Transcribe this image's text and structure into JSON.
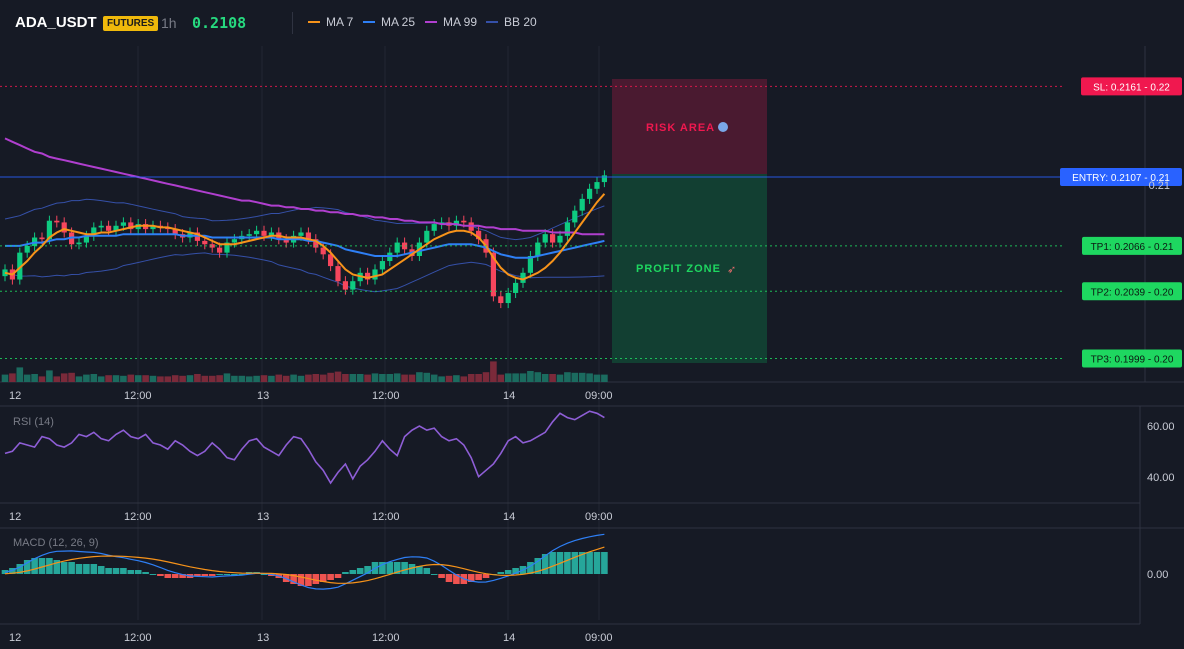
{
  "header": {
    "symbol": "ADA_USDT",
    "badge": "FUTURES",
    "timeframe": "1h",
    "price": "0.2108"
  },
  "legend": [
    {
      "label": "MA 7",
      "color": "#f7931a"
    },
    {
      "label": "MA 25",
      "color": "#2e7ff5"
    },
    {
      "label": "MA 99",
      "color": "#b03fcf"
    },
    {
      "label": "BB 20",
      "color": "#3550a8"
    }
  ],
  "levels": {
    "sl": {
      "label": "SL: 0.2161 - 0.22",
      "value": 0.2161,
      "color": "#f0184f"
    },
    "entry": {
      "label": "ENTRY: 0.2107 - 0.21",
      "value": 0.2107,
      "color": "#2962ff"
    },
    "tp1": {
      "label": "TP1: 0.2066 - 0.21",
      "value": 0.2066,
      "color": "#1ed760"
    },
    "tp2": {
      "label": "TP2: 0.2039 - 0.20",
      "value": 0.2039,
      "color": "#1ed760"
    },
    "tp3": {
      "label": "TP3: 0.1999 - 0.20",
      "value": 0.1999,
      "color": "#1ed760"
    }
  },
  "zones": {
    "risk": "RISK AREA",
    "profit": "PROFIT ZONE"
  },
  "price_axis": {
    "tick": "0.21"
  },
  "time_axis": [
    "12",
    "12:00",
    "13",
    "12:00",
    "14",
    "09:00"
  ],
  "rsi": {
    "label": "RSI (14)",
    "ticks": [
      "60.00",
      "40.00"
    ]
  },
  "macd": {
    "label": "MACD (12, 26, 9)",
    "ticks": [
      "0.00"
    ]
  },
  "chart_data": {
    "type": "line",
    "ylim": [
      0.1985,
      0.2185
    ],
    "close": [
      0.2052,
      0.2046,
      0.2062,
      0.2066,
      0.2071,
      0.207,
      0.2081,
      0.208,
      0.2074,
      0.2067,
      0.2068,
      0.2072,
      0.2077,
      0.2078,
      0.2075,
      0.2078,
      0.208,
      0.2076,
      0.2079,
      0.2076,
      0.2078,
      0.2077,
      0.2076,
      0.2073,
      0.2071,
      0.2074,
      0.2069,
      0.2067,
      0.2065,
      0.2062,
      0.2068,
      0.207,
      0.2072,
      0.2073,
      0.2075,
      0.2072,
      0.2074,
      0.207,
      0.2068,
      0.2072,
      0.2074,
      0.207,
      0.2065,
      0.2061,
      0.2054,
      0.2045,
      0.204,
      0.2045,
      0.205,
      0.2046,
      0.2052,
      0.2057,
      0.2062,
      0.2068,
      0.2064,
      0.206,
      0.2068,
      0.2075,
      0.2079,
      0.208,
      0.2078,
      0.2081,
      0.208,
      0.2075,
      0.207,
      0.2062,
      0.2036,
      0.2032,
      0.2038,
      0.2044,
      0.205,
      0.206,
      0.2068,
      0.2073,
      0.2068,
      0.2072,
      0.208,
      0.2087,
      0.2094,
      0.21,
      0.2104,
      0.2108
    ],
    "ma7": [
      0.205,
      0.2049,
      0.2053,
      0.2057,
      0.2062,
      0.2066,
      0.2071,
      0.2074,
      0.2076,
      0.2075,
      0.2074,
      0.2073,
      0.2073,
      0.2074,
      0.2074,
      0.2075,
      0.2076,
      0.2077,
      0.2078,
      0.2078,
      0.2078,
      0.2077,
      0.2077,
      0.2076,
      0.2075,
      0.2074,
      0.2073,
      0.2071,
      0.2069,
      0.2067,
      0.2067,
      0.2067,
      0.2068,
      0.2069,
      0.207,
      0.2071,
      0.2072,
      0.2072,
      0.2071,
      0.2071,
      0.2071,
      0.207,
      0.2069,
      0.2066,
      0.2062,
      0.2057,
      0.2052,
      0.2049,
      0.2048,
      0.2047,
      0.2048,
      0.2049,
      0.2052,
      0.2055,
      0.2058,
      0.2061,
      0.2064,
      0.2067,
      0.207,
      0.2072,
      0.2074,
      0.2075,
      0.2075,
      0.2074,
      0.2071,
      0.2066,
      0.2059,
      0.2053,
      0.2049,
      0.2047,
      0.2046,
      0.2048,
      0.205,
      0.2053,
      0.2057,
      0.2062,
      0.2068,
      0.2074,
      0.208,
      0.2086,
      0.2092,
      0.2097
    ],
    "ma25": [
      0.2066,
      0.2066,
      0.2066,
      0.2067,
      0.2068,
      0.2068,
      0.2069,
      0.207,
      0.207,
      0.2071,
      0.2071,
      0.2072,
      0.2072,
      0.2072,
      0.2072,
      0.2072,
      0.2073,
      0.2073,
      0.2073,
      0.2073,
      0.2073,
      0.2073,
      0.2073,
      0.2073,
      0.2072,
      0.2072,
      0.2072,
      0.2072,
      0.2071,
      0.2071,
      0.2071,
      0.2071,
      0.2071,
      0.2071,
      0.2071,
      0.2071,
      0.2071,
      0.207,
      0.207,
      0.207,
      0.207,
      0.2069,
      0.2069,
      0.2068,
      0.2067,
      0.2066,
      0.2064,
      0.2063,
      0.2062,
      0.2061,
      0.206,
      0.206,
      0.206,
      0.206,
      0.2061,
      0.2062,
      0.2063,
      0.2064,
      0.2065,
      0.2066,
      0.2067,
      0.2067,
      0.2067,
      0.2067,
      0.2066,
      0.2065,
      0.2063,
      0.2061,
      0.206,
      0.2059,
      0.2059,
      0.2059,
      0.206,
      0.2061,
      0.2062,
      0.2063,
      0.2064,
      0.2065,
      0.2066,
      0.2067,
      0.2068,
      0.2069
    ],
    "ma99": [
      0.213,
      0.2128,
      0.2126,
      0.2124,
      0.2122,
      0.2121,
      0.2119,
      0.2118,
      0.2117,
      0.2116,
      0.2115,
      0.2114,
      0.2113,
      0.2112,
      0.2111,
      0.211,
      0.2109,
      0.2108,
      0.2107,
      0.2106,
      0.2105,
      0.2104,
      0.2103,
      0.2102,
      0.2101,
      0.21,
      0.2099,
      0.2098,
      0.2097,
      0.2096,
      0.2095,
      0.2094,
      0.2093,
      0.2093,
      0.2092,
      0.2091,
      0.209,
      0.209,
      0.2089,
      0.2089,
      0.2088,
      0.2088,
      0.2087,
      0.2087,
      0.2086,
      0.2086,
      0.2085,
      0.2085,
      0.2084,
      0.2084,
      0.2083,
      0.2083,
      0.2082,
      0.2082,
      0.2081,
      0.2081,
      0.208,
      0.208,
      0.208,
      0.2079,
      0.2079,
      0.2079,
      0.2078,
      0.2078,
      0.2078,
      0.2077,
      0.2077,
      0.2076,
      0.2076,
      0.2076,
      0.2075,
      0.2075,
      0.2075,
      0.2075,
      0.2074,
      0.2074,
      0.2074,
      0.2074,
      0.2073,
      0.2073,
      0.2073,
      0.2073
    ],
    "rsi": [
      48,
      49,
      53,
      52,
      51,
      56,
      55,
      52,
      51,
      53,
      57,
      56,
      58,
      55,
      54,
      57,
      59,
      56,
      55,
      57,
      53,
      52,
      50,
      54,
      52,
      49,
      47,
      49,
      53,
      50,
      46,
      45,
      50,
      54,
      55,
      51,
      49,
      47,
      52,
      56,
      55,
      50,
      44,
      40,
      34,
      39,
      43,
      36,
      42,
      45,
      49,
      54,
      50,
      47,
      56,
      59,
      61,
      59,
      60,
      56,
      54,
      55,
      52,
      46,
      37,
      40,
      43,
      48,
      54,
      56,
      53,
      54,
      56,
      58,
      63,
      67,
      65,
      64,
      66,
      68,
      67,
      65
    ],
    "macd_hist": [
      0.2,
      0.3,
      0.5,
      0.7,
      0.8,
      0.8,
      0.8,
      0.7,
      0.6,
      0.6,
      0.5,
      0.5,
      0.5,
      0.4,
      0.3,
      0.3,
      0.3,
      0.2,
      0.2,
      0.1,
      0.0,
      -0.1,
      -0.2,
      -0.2,
      -0.2,
      -0.2,
      -0.1,
      -0.1,
      -0.1,
      0.0,
      0.0,
      0.0,
      0.0,
      0.1,
      0.1,
      0.0,
      -0.1,
      -0.2,
      -0.4,
      -0.5,
      -0.6,
      -0.6,
      -0.5,
      -0.4,
      -0.3,
      -0.2,
      0.1,
      0.2,
      0.3,
      0.4,
      0.6,
      0.6,
      0.6,
      0.6,
      0.6,
      0.5,
      0.4,
      0.3,
      0.0,
      -0.2,
      -0.4,
      -0.5,
      -0.5,
      -0.4,
      -0.3,
      -0.2,
      0.0,
      0.1,
      0.2,
      0.3,
      0.4,
      0.6,
      0.8,
      1.0,
      1.1,
      1.1,
      1.1,
      1.1,
      1.1,
      1.1,
      1.1,
      1.1
    ]
  }
}
